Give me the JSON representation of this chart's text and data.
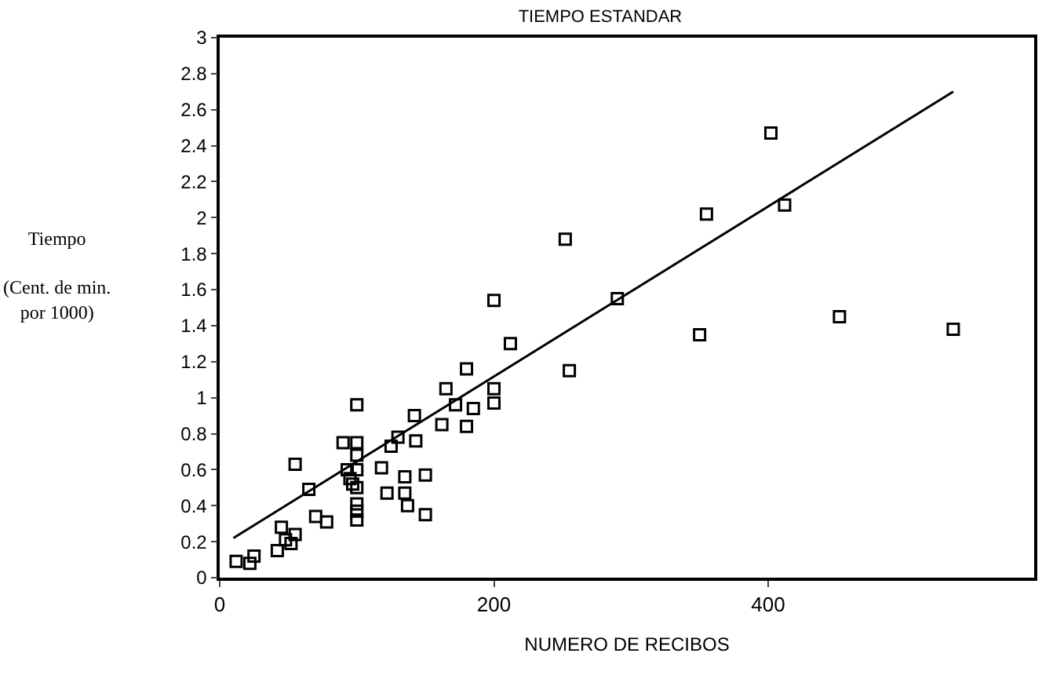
{
  "chart_data": {
    "type": "scatter",
    "title": "TIEMPO ESTANDAR",
    "xlabel": "NUMERO DE RECIBOS",
    "ylabel": "Tiempo\n\n(Cent. de min.\npor 1000)",
    "xlim": [
      0,
      594
    ],
    "xticks": [
      0,
      200,
      400
    ],
    "ylim": [
      0,
      3
    ],
    "yticks": [
      0,
      0.2,
      0.4,
      0.6,
      0.8,
      1,
      1.2,
      1.4,
      1.6,
      1.8,
      2,
      2.2,
      2.4,
      2.6,
      2.8,
      3
    ],
    "marker": "square",
    "series": [
      {
        "color": "#000000",
        "x": [
          12,
          22,
          25,
          42,
          45,
          48,
          52,
          55,
          55,
          65,
          70,
          78,
          90,
          93,
          95,
          97,
          100,
          100,
          100,
          100,
          100,
          100,
          100,
          100,
          118,
          122,
          125,
          130,
          135,
          135,
          137,
          142,
          143,
          150,
          150,
          162,
          165,
          172,
          180,
          180,
          185,
          200,
          200,
          200,
          212,
          252,
          255,
          290,
          350,
          355,
          402,
          412,
          452,
          535
        ],
        "values": [
          0.09,
          0.08,
          0.12,
          0.15,
          0.28,
          0.21,
          0.19,
          0.24,
          0.63,
          0.49,
          0.34,
          0.31,
          0.75,
          0.6,
          0.55,
          0.52,
          0.75,
          0.68,
          0.6,
          0.5,
          0.41,
          0.37,
          0.32,
          0.96,
          0.61,
          0.47,
          0.73,
          0.78,
          0.56,
          0.47,
          0.4,
          0.9,
          0.76,
          0.35,
          0.57,
          0.85,
          1.05,
          0.96,
          1.16,
          0.84,
          0.94,
          1.54,
          1.05,
          0.97,
          1.3,
          1.88,
          1.15,
          1.55,
          1.35,
          2.02,
          2.47,
          2.07,
          1.45,
          1.38
        ]
      },
      {
        "type": "line",
        "color": "#000000",
        "marker": "none",
        "line_style": "solid",
        "x": [
          10,
          535
        ],
        "values": [
          0.22,
          2.7
        ]
      }
    ]
  }
}
